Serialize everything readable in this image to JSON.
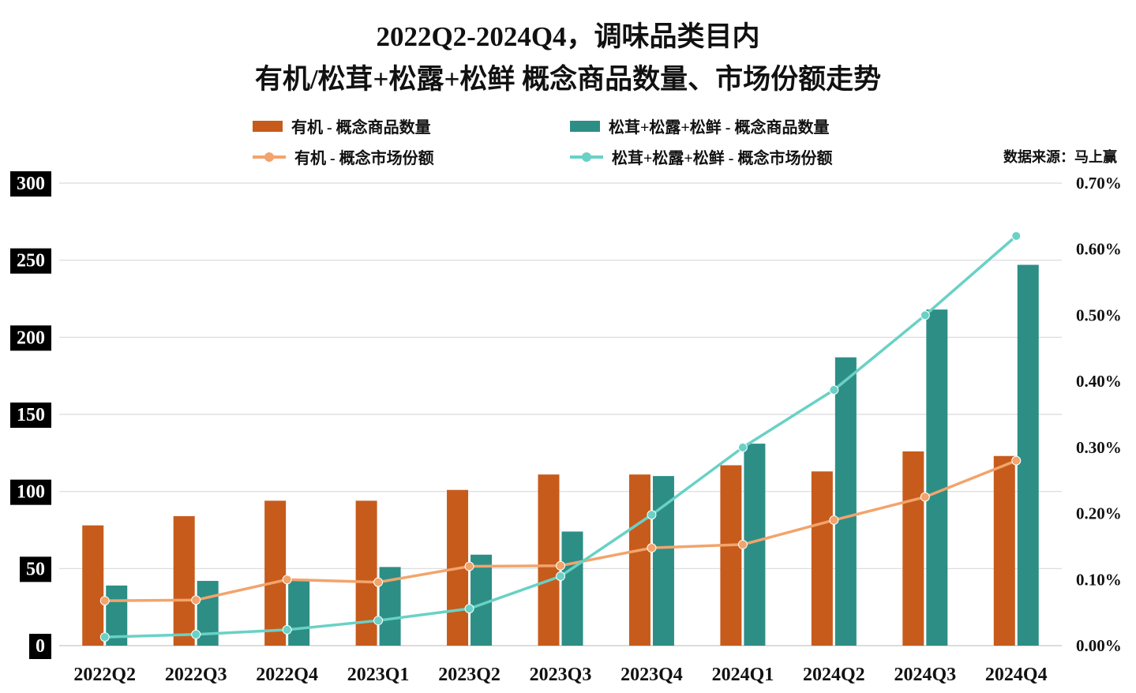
{
  "title": {
    "line1": "2022Q2-2024Q4，调味品类目内",
    "line2": "有机/松茸+松露+松鲜 概念商品数量、市场份额走势"
  },
  "source_note": "数据来源：马上赢",
  "colors": {
    "organic_bar": "#C75B1B",
    "matsutake_bar": "#2D8E86",
    "organic_line": "#F2A46C",
    "matsutake_line": "#69D1C5",
    "gridline": "#D9D9D9",
    "axis_text": "#111111",
    "left_tick_bg": "#000000",
    "left_tick_text": "#FFFFFF"
  },
  "legend": [
    {
      "label": "有机 - 概念商品数量",
      "marker": "bar",
      "color": "#C75B1B"
    },
    {
      "label": "松茸+松露+松鲜 - 概念商品数量",
      "marker": "bar",
      "color": "#2D8E86"
    },
    {
      "label": "有机 - 概念市场份额",
      "marker": "line",
      "color": "#F2A46C"
    },
    {
      "label": "松茸+松露+松鲜 - 概念市场份额",
      "marker": "line",
      "color": "#69D1C5"
    }
  ],
  "chart_data": {
    "type": "bar",
    "subtype": "combo-bar-line-dual-axis",
    "title": "2022Q2-2024Q4，调味品类目内 有机/松茸+松露+松鲜 概念商品数量、市场份额走势",
    "legend_position": "top",
    "grid": true,
    "categories": [
      "2022Q2",
      "2022Q3",
      "2022Q4",
      "2023Q1",
      "2023Q2",
      "2023Q3",
      "2023Q4",
      "2024Q1",
      "2024Q2",
      "2024Q3",
      "2024Q4"
    ],
    "series": [
      {
        "name": "有机 - 概念商品数量",
        "type": "bar",
        "axis": "left",
        "color": "#C75B1B",
        "values": [
          78,
          84,
          94,
          94,
          101,
          111,
          111,
          117,
          113,
          126,
          123
        ]
      },
      {
        "name": "松茸+松露+松鲜 - 概念商品数量",
        "type": "bar",
        "axis": "left",
        "color": "#2D8E86",
        "values": [
          39,
          42,
          43,
          51,
          59,
          74,
          110,
          131,
          187,
          218,
          247
        ]
      },
      {
        "name": "有机 - 概念市场份额",
        "type": "line",
        "axis": "right",
        "color": "#F2A46C",
        "values": [
          0.068,
          0.069,
          0.1,
          0.096,
          0.12,
          0.121,
          0.148,
          0.153,
          0.19,
          0.225,
          0.28
        ]
      },
      {
        "name": "松茸+松露+松鲜 - 概念市场份额",
        "type": "line",
        "axis": "right",
        "color": "#69D1C5",
        "values": [
          0.013,
          0.017,
          0.024,
          0.038,
          0.056,
          0.105,
          0.198,
          0.3,
          0.387,
          0.5,
          0.62
        ]
      }
    ],
    "left_axis": {
      "min": 0,
      "max": 300,
      "step": 50,
      "ticks": [
        "0",
        "50",
        "100",
        "150",
        "200",
        "250",
        "300"
      ]
    },
    "right_axis": {
      "min": 0,
      "max": 0.7,
      "step": 0.1,
      "ticks": [
        "0.00%",
        "0.10%",
        "0.20%",
        "0.30%",
        "0.40%",
        "0.50%",
        "0.60%",
        "0.70%"
      ]
    }
  }
}
